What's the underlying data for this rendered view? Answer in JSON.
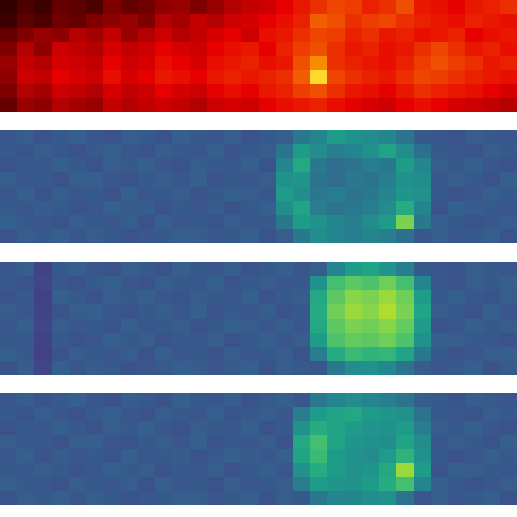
{
  "chart_data": [
    {
      "type": "heatmap",
      "color": "hot",
      "zlim": [
        0,
        150
      ],
      "tick_labels": false,
      "z": [
        [
          10,
          15,
          12,
          20,
          18,
          15,
          25,
          20,
          22,
          28,
          30,
          25,
          30,
          35,
          38,
          40,
          45,
          50,
          55,
          60,
          58,
          52,
          55,
          62,
          50,
          48,
          45,
          50,
          52,
          55
        ],
        [
          12,
          18,
          15,
          22,
          20,
          25,
          28,
          30,
          25,
          35,
          32,
          38,
          35,
          40,
          42,
          45,
          48,
          52,
          65,
          62,
          55,
          58,
          60,
          55,
          52,
          50,
          48,
          52,
          50,
          48
        ],
        [
          20,
          25,
          30,
          28,
          35,
          32,
          38,
          30,
          35,
          40,
          35,
          38,
          42,
          45,
          40,
          48,
          50,
          55,
          60,
          58,
          52,
          55,
          50,
          52,
          48,
          50,
          52,
          45,
          48,
          50
        ],
        [
          25,
          35,
          28,
          40,
          38,
          35,
          42,
          38,
          40,
          45,
          42,
          40,
          45,
          48,
          50,
          45,
          52,
          58,
          62,
          55,
          50,
          52,
          48,
          50,
          55,
          60,
          55,
          50,
          52,
          48
        ],
        [
          30,
          38,
          35,
          42,
          40,
          38,
          45,
          40,
          42,
          48,
          45,
          42,
          48,
          50,
          52,
          48,
          50,
          62,
          75,
          55,
          52,
          50,
          48,
          52,
          58,
          62,
          58,
          55,
          50,
          52
        ],
        [
          28,
          40,
          38,
          45,
          42,
          40,
          48,
          42,
          45,
          50,
          48,
          45,
          50,
          52,
          50,
          52,
          55,
          65,
          100,
          60,
          55,
          52,
          50,
          55,
          60,
          58,
          55,
          52,
          50,
          48
        ],
        [
          25,
          35,
          32,
          40,
          38,
          35,
          42,
          38,
          40,
          45,
          42,
          40,
          45,
          48,
          45,
          50,
          52,
          58,
          62,
          55,
          50,
          48,
          45,
          50,
          55,
          52,
          50,
          48,
          45,
          42
        ],
        [
          20,
          30,
          28,
          35,
          32,
          30,
          38,
          35,
          38,
          40,
          38,
          35,
          40,
          42,
          40,
          45,
          48,
          50,
          52,
          48,
          45,
          42,
          40,
          45,
          48,
          45,
          42,
          40,
          38,
          35
        ]
      ]
    },
    {
      "type": "heatmap",
      "color": "viridis",
      "zlim": [
        0,
        100
      ],
      "tick_labels": false,
      "z": [
        [
          27,
          29,
          26,
          28,
          30,
          27,
          25,
          29,
          28,
          26,
          30,
          28,
          27,
          29,
          26,
          28,
          30,
          40,
          45,
          55,
          50,
          48,
          45,
          38,
          28,
          27,
          26,
          29,
          28,
          27
        ],
        [
          28,
          26,
          29,
          27,
          25,
          28,
          30,
          27,
          26,
          29,
          28,
          27,
          30,
          26,
          28,
          29,
          38,
          55,
          48,
          42,
          45,
          50,
          58,
          48,
          36,
          28,
          27,
          26,
          29,
          28
        ],
        [
          26,
          28,
          27,
          30,
          28,
          26,
          29,
          28,
          30,
          27,
          26,
          29,
          28,
          27,
          30,
          26,
          45,
          60,
          40,
          35,
          38,
          42,
          40,
          55,
          45,
          29,
          28,
          30,
          27,
          26
        ],
        [
          29,
          27,
          28,
          26,
          29,
          30,
          27,
          26,
          28,
          29,
          27,
          30,
          26,
          28,
          27,
          29,
          50,
          52,
          38,
          35,
          40,
          38,
          42,
          50,
          48,
          27,
          29,
          28,
          26,
          30
        ],
        [
          27,
          30,
          26,
          29,
          27,
          28,
          26,
          30,
          27,
          28,
          29,
          26,
          28,
          30,
          29,
          27,
          55,
          48,
          40,
          42,
          38,
          40,
          45,
          52,
          50,
          28,
          26,
          27,
          30,
          28
        ],
        [
          28,
          27,
          29,
          28,
          26,
          27,
          30,
          28,
          29,
          26,
          28,
          27,
          29,
          26,
          28,
          30,
          48,
          58,
          42,
          38,
          40,
          42,
          48,
          62,
          45,
          26,
          30,
          29,
          28,
          27
        ],
        [
          30,
          28,
          27,
          26,
          29,
          28,
          27,
          29,
          26,
          30,
          27,
          28,
          26,
          29,
          27,
          28,
          40,
          55,
          50,
          45,
          42,
          48,
          55,
          80,
          40,
          30,
          28,
          26,
          27,
          29
        ],
        [
          26,
          29,
          28,
          30,
          27,
          29,
          28,
          26,
          27,
          28,
          30,
          29,
          27,
          28,
          30,
          26,
          29,
          40,
          48,
          45,
          42,
          45,
          42,
          36,
          27,
          29,
          27,
          28,
          30,
          26
        ]
      ]
    },
    {
      "type": "heatmap",
      "color": "viridis",
      "zlim": [
        0,
        100
      ],
      "tick_labels": false,
      "z": [
        [
          27,
          29,
          20,
          28,
          30,
          27,
          25,
          29,
          28,
          26,
          30,
          28,
          27,
          29,
          26,
          28,
          30,
          27,
          29,
          45,
          55,
          58,
          52,
          42,
          28,
          27,
          26,
          29,
          28,
          27
        ],
        [
          28,
          26,
          21,
          27,
          25,
          28,
          30,
          27,
          26,
          29,
          28,
          27,
          30,
          26,
          28,
          29,
          27,
          28,
          50,
          70,
          75,
          72,
          78,
          70,
          45,
          27,
          26,
          29,
          28,
          30
        ],
        [
          26,
          28,
          19,
          30,
          28,
          26,
          29,
          28,
          30,
          27,
          26,
          29,
          28,
          27,
          30,
          26,
          28,
          29,
          60,
          75,
          82,
          80,
          85,
          78,
          55,
          28,
          30,
          27,
          26,
          29
        ],
        [
          29,
          27,
          20,
          26,
          29,
          30,
          27,
          26,
          28,
          29,
          27,
          30,
          26,
          28,
          27,
          29,
          26,
          28,
          62,
          78,
          85,
          82,
          88,
          80,
          58,
          29,
          28,
          26,
          30,
          27
        ],
        [
          27,
          30,
          21,
          29,
          27,
          28,
          26,
          30,
          27,
          28,
          29,
          26,
          28,
          30,
          29,
          27,
          30,
          27,
          60,
          75,
          80,
          78,
          82,
          76,
          55,
          26,
          27,
          30,
          28,
          29
        ],
        [
          28,
          27,
          20,
          28,
          26,
          27,
          30,
          28,
          29,
          26,
          28,
          27,
          29,
          26,
          28,
          30,
          27,
          29,
          55,
          72,
          76,
          75,
          78,
          72,
          50,
          30,
          29,
          28,
          27,
          26
        ],
        [
          30,
          28,
          19,
          26,
          29,
          28,
          27,
          29,
          26,
          30,
          27,
          28,
          26,
          29,
          27,
          28,
          29,
          26,
          42,
          62,
          68,
          65,
          66,
          58,
          40,
          28,
          26,
          27,
          29,
          30
        ],
        [
          26,
          29,
          21,
          30,
          27,
          29,
          28,
          26,
          27,
          28,
          30,
          29,
          27,
          28,
          30,
          26,
          29,
          28,
          27,
          40,
          48,
          50,
          46,
          38,
          29,
          27,
          28,
          30,
          26,
          28
        ]
      ]
    },
    {
      "type": "heatmap",
      "color": "viridis",
      "zlim": [
        0,
        100
      ],
      "tick_labels": false,
      "z": [
        [
          27,
          29,
          26,
          28,
          30,
          27,
          25,
          29,
          28,
          26,
          30,
          28,
          27,
          29,
          26,
          28,
          30,
          27,
          40,
          45,
          48,
          45,
          42,
          38,
          29,
          28,
          26,
          29,
          28,
          27
        ],
        [
          28,
          26,
          29,
          27,
          25,
          28,
          30,
          27,
          26,
          29,
          28,
          27,
          30,
          26,
          28,
          29,
          27,
          42,
          55,
          58,
          60,
          55,
          52,
          50,
          38,
          28,
          27,
          26,
          29,
          28
        ],
        [
          26,
          28,
          27,
          30,
          28,
          26,
          29,
          28,
          30,
          27,
          26,
          29,
          28,
          27,
          30,
          26,
          28,
          50,
          62,
          58,
          55,
          52,
          50,
          55,
          42,
          29,
          28,
          30,
          27,
          26
        ],
        [
          29,
          27,
          28,
          26,
          29,
          30,
          27,
          26,
          28,
          29,
          27,
          30,
          26,
          28,
          27,
          29,
          26,
          60,
          70,
          58,
          52,
          50,
          48,
          58,
          48,
          27,
          29,
          28,
          26,
          30
        ],
        [
          27,
          30,
          26,
          29,
          27,
          28,
          26,
          30,
          27,
          28,
          29,
          26,
          28,
          30,
          29,
          27,
          30,
          58,
          68,
          55,
          50,
          48,
          55,
          65,
          50,
          28,
          26,
          27,
          30,
          28
        ],
        [
          28,
          27,
          29,
          28,
          26,
          27,
          30,
          28,
          29,
          26,
          28,
          27,
          29,
          26,
          28,
          30,
          27,
          50,
          62,
          55,
          50,
          52,
          60,
          85,
          55,
          26,
          30,
          29,
          28,
          27
        ],
        [
          30,
          28,
          27,
          26,
          29,
          28,
          27,
          29,
          26,
          30,
          27,
          28,
          26,
          29,
          27,
          28,
          29,
          42,
          55,
          52,
          50,
          55,
          62,
          70,
          45,
          30,
          28,
          26,
          27,
          29
        ],
        [
          26,
          29,
          28,
          30,
          27,
          29,
          28,
          26,
          27,
          28,
          30,
          29,
          27,
          28,
          30,
          26,
          29,
          28,
          40,
          45,
          46,
          48,
          50,
          38,
          27,
          29,
          27,
          28,
          30,
          26
        ]
      ]
    }
  ]
}
